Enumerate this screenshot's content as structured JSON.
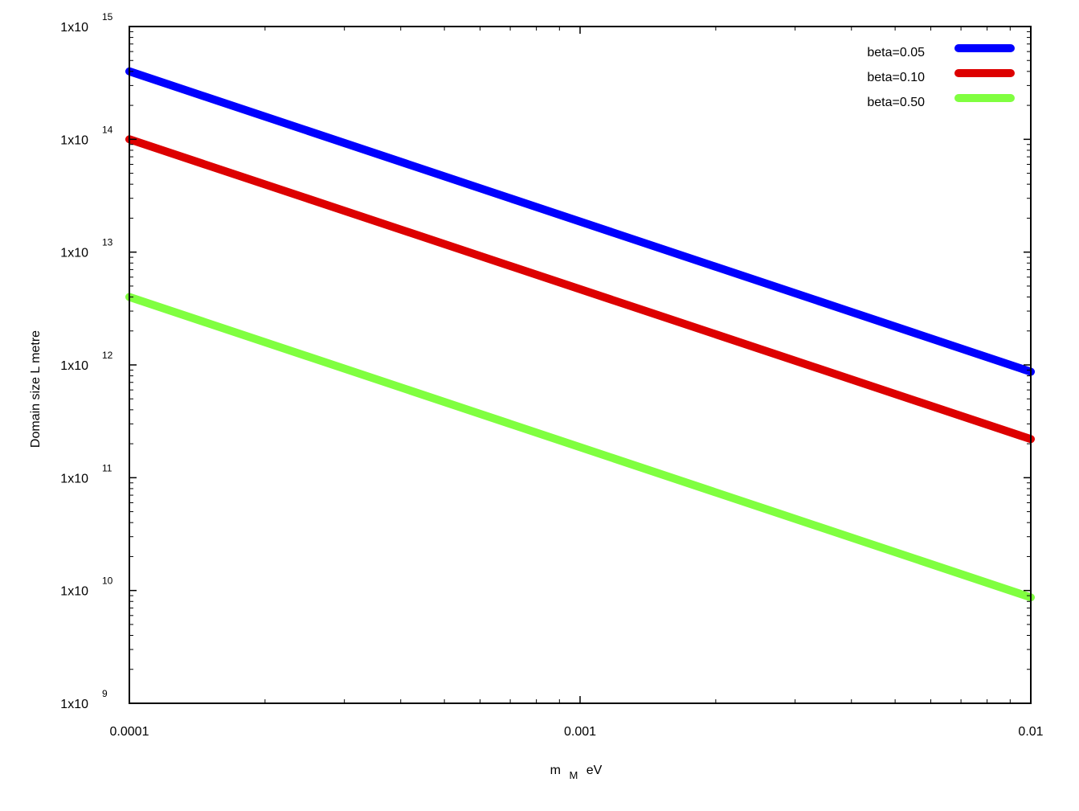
{
  "chart_data": {
    "type": "line",
    "title": "",
    "xlabel": {
      "main": "m",
      "sub": "M",
      "unit": "eV"
    },
    "ylabel": "Domain size L metre",
    "x_scale": "log",
    "y_scale": "log",
    "xlim": [
      0.0001,
      0.01
    ],
    "ylim": [
      1000000000.0,
      1000000000000000.0
    ],
    "x_ticks": [
      {
        "value": 0.0001,
        "label": "0.0001"
      },
      {
        "value": 0.001,
        "label": "0.001"
      },
      {
        "value": 0.01,
        "label": "0.01"
      }
    ],
    "y_ticks": [
      {
        "value": 1000000000.0,
        "base": "1x10",
        "exp": "9"
      },
      {
        "value": 10000000000.0,
        "base": "1x10",
        "exp": "10"
      },
      {
        "value": 100000000000.0,
        "base": "1x10",
        "exp": "11"
      },
      {
        "value": 1000000000000.0,
        "base": "1x10",
        "exp": "12"
      },
      {
        "value": 10000000000000.0,
        "base": "1x10",
        "exp": "13"
      },
      {
        "value": 100000000000000.0,
        "base": "1x10",
        "exp": "14"
      },
      {
        "value": 1000000000000000.0,
        "base": "1x10",
        "exp": "15"
      }
    ],
    "grid": false,
    "legend_position": "top-right",
    "series": [
      {
        "name": "beta=0.05",
        "color": "#0000ff",
        "x": [
          0.0001,
          0.01
        ],
        "y": [
          400000000000000.0,
          870000000000.0
        ]
      },
      {
        "name": "beta=0.10",
        "color": "#dd0000",
        "x": [
          0.0001,
          0.01
        ],
        "y": [
          100000000000000.0,
          220000000000.0
        ]
      },
      {
        "name": "beta=0.50",
        "color": "#80ff40",
        "x": [
          0.0001,
          0.01
        ],
        "y": [
          4000000000000.0,
          8700000000.0
        ]
      }
    ]
  }
}
